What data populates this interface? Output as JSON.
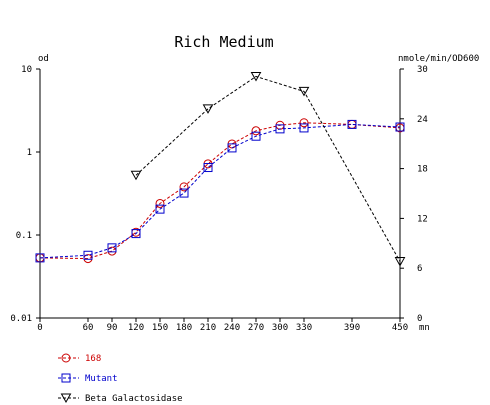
{
  "chart_data": {
    "type": "line",
    "title": "Rich Medium",
    "y_left_label": "od",
    "y_right_label": "nmole/min/OD600",
    "x_unit": "mn",
    "x_ticks": [
      0,
      60,
      90,
      120,
      150,
      180,
      210,
      240,
      270,
      300,
      330,
      390,
      450
    ],
    "y_left_ticks": [
      "0.01",
      "0.1",
      "1",
      "10"
    ],
    "y_left_scale": "log",
    "y_left_range": [
      0.01,
      10
    ],
    "y_right_ticks": [
      "0",
      "6",
      "12",
      "18",
      "24",
      "30"
    ],
    "y_right_range": [
      0,
      30
    ],
    "x_range": [
      0,
      450
    ],
    "series": [
      {
        "name": "168",
        "axis": "left",
        "color": "#cc0000",
        "marker": "circle",
        "x": [
          0,
          60,
          90,
          120,
          150,
          180,
          210,
          240,
          270,
          300,
          330,
          390,
          450
        ],
        "y": [
          0.053,
          0.052,
          0.064,
          0.108,
          0.24,
          0.38,
          0.72,
          1.25,
          1.8,
          2.1,
          2.25,
          2.15,
          1.95
        ]
      },
      {
        "name": "Mutant",
        "axis": "left",
        "color": "#0000cc",
        "marker": "square",
        "x": [
          0,
          60,
          90,
          120,
          150,
          180,
          210,
          240,
          270,
          300,
          330,
          390,
          450
        ],
        "y": [
          0.053,
          0.057,
          0.07,
          0.104,
          0.205,
          0.32,
          0.65,
          1.12,
          1.55,
          1.9,
          1.95,
          2.15,
          2.0
        ]
      },
      {
        "name": "Beta Galactosidase",
        "axis": "right",
        "color": "#000000",
        "marker": "triangle-down",
        "x": [
          120,
          210,
          270,
          330,
          450
        ],
        "y": [
          17.2,
          25.2,
          29.1,
          27.3,
          6.8
        ]
      }
    ],
    "legend_position": "bottom-left"
  }
}
